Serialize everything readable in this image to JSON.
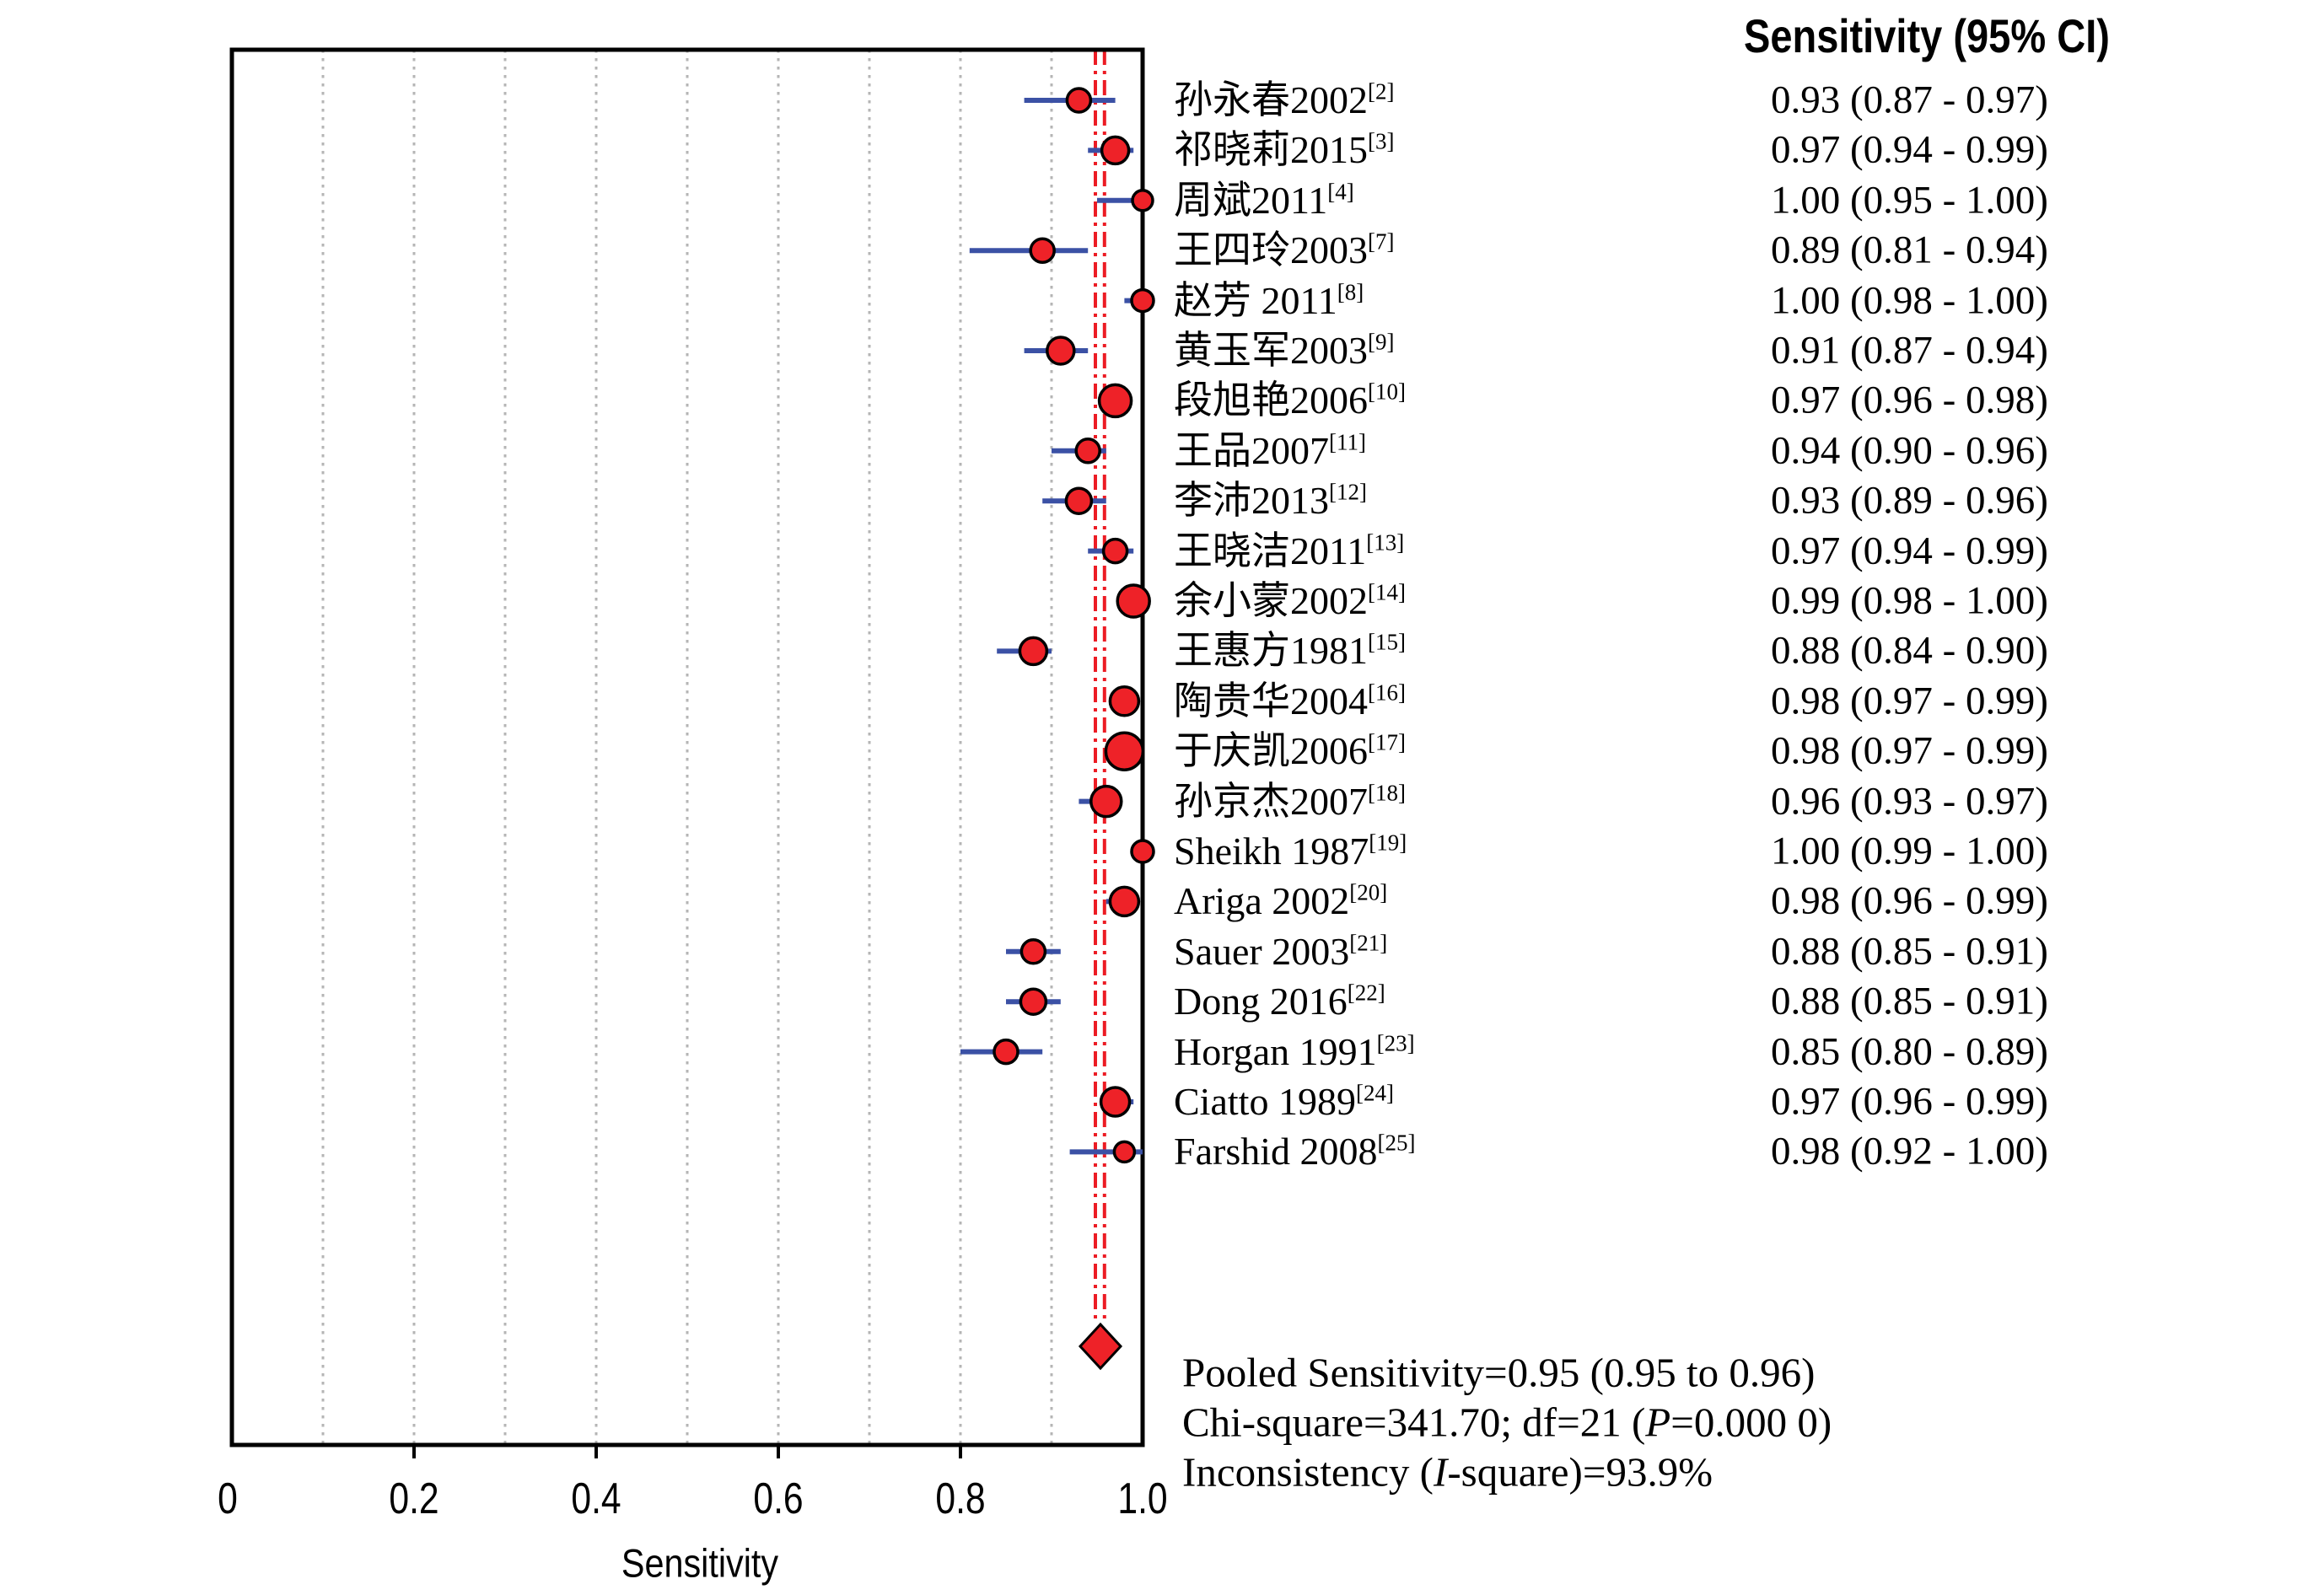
{
  "header": {
    "ci_column_title": "Sensitivity (95% CI)"
  },
  "axis": {
    "label": "Sensitivity",
    "ticks": [
      "0",
      "0.2",
      "0.4",
      "0.6",
      "0.8",
      "1.0"
    ],
    "tick_values": [
      0,
      0.2,
      0.4,
      0.6,
      0.8,
      1.0
    ]
  },
  "summary": {
    "lines": [
      {
        "parts": [
          {
            "t": "Pooled Sensitivity=0.95 (0.95 to 0.96)",
            "i": false
          }
        ]
      },
      {
        "parts": [
          {
            "t": "Chi-square=341.70; df=21 (",
            "i": false
          },
          {
            "t": "P",
            "i": true
          },
          {
            "t": "=0.000 0)",
            "i": false
          }
        ]
      },
      {
        "parts": [
          {
            "t": "Inconsistency (",
            "i": false
          },
          {
            "t": "I",
            "i": true
          },
          {
            "t": "-square)=93.9%",
            "i": false
          }
        ]
      }
    ]
  },
  "chart_data": {
    "type": "forest",
    "xlabel": "Sensitivity",
    "xlim": [
      0,
      1
    ],
    "x_ticks": [
      0,
      0.2,
      0.4,
      0.6,
      0.8,
      1.0
    ],
    "gridlines_x": [
      0.1,
      0.2,
      0.3,
      0.4,
      0.5,
      0.6,
      0.7,
      0.8,
      0.9
    ],
    "ci_column_header": "Sensitivity (95% CI)",
    "studies": [
      {
        "label": "孙永春2002",
        "ref": "[2]",
        "sensitivity": 0.93,
        "ci_lower": 0.87,
        "ci_upper": 0.97,
        "ci_text": "0.93 (0.87 - 0.97)",
        "marker_radius": 14
      },
      {
        "label": "祁晓莉2015",
        "ref": "[3]",
        "sensitivity": 0.97,
        "ci_lower": 0.94,
        "ci_upper": 0.99,
        "ci_text": "0.97 (0.94 - 0.99)",
        "marker_radius": 16
      },
      {
        "label": "周斌2011",
        "ref": "[4]",
        "sensitivity": 1.0,
        "ci_lower": 0.95,
        "ci_upper": 1.0,
        "ci_text": "1.00 (0.95 - 1.00)",
        "marker_radius": 12
      },
      {
        "label": "王四玲2003",
        "ref": "[7]",
        "sensitivity": 0.89,
        "ci_lower": 0.81,
        "ci_upper": 0.94,
        "ci_text": "0.89 (0.81 - 0.94)",
        "marker_radius": 14
      },
      {
        "label": "赵芳 2011",
        "ref": "[8]",
        "sensitivity": 1.0,
        "ci_lower": 0.98,
        "ci_upper": 1.0,
        "ci_text": "1.00 (0.98 - 1.00)",
        "marker_radius": 13
      },
      {
        "label": "黄玉军2003",
        "ref": "[9]",
        "sensitivity": 0.91,
        "ci_lower": 0.87,
        "ci_upper": 0.94,
        "ci_text": "0.91 (0.87 - 0.94)",
        "marker_radius": 16
      },
      {
        "label": "段旭艳2006",
        "ref": "[10]",
        "sensitivity": 0.97,
        "ci_lower": 0.96,
        "ci_upper": 0.98,
        "ci_text": "0.97 (0.96 - 0.98)",
        "marker_radius": 19
      },
      {
        "label": "王品2007",
        "ref": "[11]",
        "sensitivity": 0.94,
        "ci_lower": 0.9,
        "ci_upper": 0.96,
        "ci_text": "0.94 (0.90 - 0.96)",
        "marker_radius": 14
      },
      {
        "label": "李沛2013",
        "ref": "[12]",
        "sensitivity": 0.93,
        "ci_lower": 0.89,
        "ci_upper": 0.96,
        "ci_text": "0.93 (0.89 - 0.96)",
        "marker_radius": 15
      },
      {
        "label": "王晓洁2011",
        "ref": "[13]",
        "sensitivity": 0.97,
        "ci_lower": 0.94,
        "ci_upper": 0.99,
        "ci_text": "0.97 (0.94 - 0.99)",
        "marker_radius": 14
      },
      {
        "label": "余小蒙2002",
        "ref": "[14]",
        "sensitivity": 0.99,
        "ci_lower": 0.98,
        "ci_upper": 1.0,
        "ci_text": "0.99 (0.98 - 1.00)",
        "marker_radius": 19
      },
      {
        "label": "王惠方1981",
        "ref": "[15]",
        "sensitivity": 0.88,
        "ci_lower": 0.84,
        "ci_upper": 0.9,
        "ci_text": "0.88 (0.84 - 0.90)",
        "marker_radius": 16
      },
      {
        "label": "陶贵华2004",
        "ref": "[16]",
        "sensitivity": 0.98,
        "ci_lower": 0.97,
        "ci_upper": 0.99,
        "ci_text": "0.98 (0.97 - 0.99)",
        "marker_radius": 17
      },
      {
        "label": "于庆凯2006",
        "ref": "[17]",
        "sensitivity": 0.98,
        "ci_lower": 0.97,
        "ci_upper": 0.99,
        "ci_text": "0.98 (0.97 - 0.99)",
        "marker_radius": 22
      },
      {
        "label": "孙京杰2007",
        "ref": "[18]",
        "sensitivity": 0.96,
        "ci_lower": 0.93,
        "ci_upper": 0.97,
        "ci_text": "0.96 (0.93 - 0.97)",
        "marker_radius": 18
      },
      {
        "label": "Sheikh 1987",
        "ref": "[19]",
        "sensitivity": 1.0,
        "ci_lower": 0.99,
        "ci_upper": 1.0,
        "ci_text": "1.00 (0.99 - 1.00)",
        "marker_radius": 13
      },
      {
        "label": "Ariga 2002",
        "ref": "[20]",
        "sensitivity": 0.98,
        "ci_lower": 0.96,
        "ci_upper": 0.99,
        "ci_text": "0.98 (0.96 - 0.99)",
        "marker_radius": 17
      },
      {
        "label": "Sauer 2003",
        "ref": "[21]",
        "sensitivity": 0.88,
        "ci_lower": 0.85,
        "ci_upper": 0.91,
        "ci_text": "0.88 (0.85 - 0.91)",
        "marker_radius": 14
      },
      {
        "label": "Dong 2016",
        "ref": "[22]",
        "sensitivity": 0.88,
        "ci_lower": 0.85,
        "ci_upper": 0.91,
        "ci_text": "0.88 (0.85 - 0.91)",
        "marker_radius": 15
      },
      {
        "label": "Horgan 1991",
        "ref": "[23]",
        "sensitivity": 0.85,
        "ci_lower": 0.8,
        "ci_upper": 0.89,
        "ci_text": "0.85 (0.80 - 0.89)",
        "marker_radius": 14
      },
      {
        "label": "Ciatto 1989",
        "ref": "[24]",
        "sensitivity": 0.97,
        "ci_lower": 0.96,
        "ci_upper": 0.99,
        "ci_text": "0.97 (0.96 - 0.99)",
        "marker_radius": 17
      },
      {
        "label": "Farshid 2008",
        "ref": "[25]",
        "sensitivity": 0.98,
        "ci_lower": 0.92,
        "ci_upper": 1.0,
        "ci_text": "0.98 (0.92 - 1.00)",
        "marker_radius": 12
      }
    ],
    "pooled": {
      "estimate": 0.95,
      "ci_lower": 0.95,
      "ci_upper": 0.96
    },
    "heterogeneity": {
      "chi_square": 341.7,
      "df": 21,
      "p": "0.000 0",
      "i_square_pct": 93.9
    },
    "colors": {
      "marker_fill": "#ee2228",
      "marker_stroke": "#000000",
      "ci_line": "#3b51a5",
      "pooled_ref_line": "#ec1c24",
      "gridline": "#b5b5b5",
      "frame": "#000000",
      "diamond_fill": "#ee2228"
    }
  }
}
